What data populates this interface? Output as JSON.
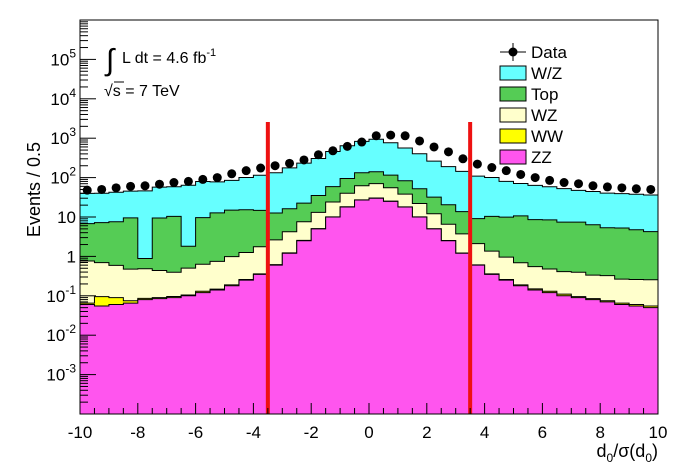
{
  "chart_data": {
    "type": "area",
    "xlabel": {
      "main": "d",
      "sub1": "0",
      "mid": "/σ(d",
      "sub2": "0",
      "end": ")"
    },
    "ylabel": "Events / 0.5",
    "xlim": [
      -10,
      10
    ],
    "ylim": [
      0.0001,
      1000000
    ],
    "yscale": "log",
    "stacked": true,
    "bin_width": 0.5,
    "x_ticks": [
      "-10",
      "-8",
      "-6",
      "-4",
      "-2",
      "0",
      "2",
      "4",
      "6",
      "8",
      "10"
    ],
    "y_ticks": [
      {
        "type": "sup",
        "base": "10",
        "exp": "5",
        "value": 100000
      },
      {
        "type": "sup",
        "base": "10",
        "exp": "4",
        "value": 10000
      },
      {
        "type": "sup",
        "base": "10",
        "exp": "3",
        "value": 1000
      },
      {
        "type": "sup",
        "base": "10",
        "exp": "2",
        "value": 100
      },
      {
        "type": "plain",
        "text": "10",
        "value": 10
      },
      {
        "type": "plain",
        "text": "1",
        "value": 1
      },
      {
        "type": "sup",
        "base": "10",
        "exp": "-1",
        "value": 0.1
      },
      {
        "type": "sup",
        "base": "10",
        "exp": "-2",
        "value": 0.01
      },
      {
        "type": "sup",
        "base": "10",
        "exp": "-3",
        "value": 0.001
      }
    ],
    "annotations": {
      "lumi_prefix": "L dt = 4.6 fb",
      "lumi_exp": "-1",
      "energy_sqrt": "√",
      "energy_rest": "s = 7 TeV"
    },
    "cut_lines": [
      -3.5,
      3.5
    ],
    "cut_color": "#ee1111",
    "legend": {
      "position": "top-right",
      "entries": [
        {
          "label": "Data",
          "kind": "marker"
        },
        {
          "label": "W/Z",
          "color": "#66ffff"
        },
        {
          "label": "Top",
          "color": "#55cc55"
        },
        {
          "label": "WZ",
          "color": "#ffffcc"
        },
        {
          "label": "WW",
          "color": "#ffff00"
        },
        {
          "label": "ZZ",
          "color": "#ff55ee"
        }
      ]
    },
    "stack_order": [
      "ZZ",
      "WW",
      "WZ",
      "Top",
      "W/Z"
    ],
    "bin_centers": [
      -9.75,
      -9.25,
      -8.75,
      -8.25,
      -7.75,
      -7.25,
      -6.75,
      -6.25,
      -5.75,
      -5.25,
      -4.75,
      -4.25,
      -3.75,
      -3.25,
      -2.75,
      -2.25,
      -1.75,
      -1.25,
      -0.75,
      -0.25,
      0.25,
      0.75,
      1.25,
      1.75,
      2.25,
      2.75,
      3.25,
      3.75,
      4.25,
      4.75,
      5.25,
      5.75,
      6.25,
      6.75,
      7.25,
      7.75,
      8.25,
      8.75,
      9.25,
      9.75
    ],
    "series": [
      {
        "name": "ZZ",
        "color": "#ff55ee",
        "values": [
          0.06,
          0.055,
          0.06,
          0.065,
          0.08,
          0.085,
          0.09,
          0.1,
          0.12,
          0.14,
          0.18,
          0.25,
          0.35,
          0.6,
          1.2,
          2.5,
          5,
          10,
          18,
          27,
          30,
          25,
          18,
          10,
          5,
          2.5,
          1.2,
          0.6,
          0.35,
          0.25,
          0.18,
          0.14,
          0.12,
          0.1,
          0.09,
          0.08,
          0.07,
          0.06,
          0.055,
          0.05
        ]
      },
      {
        "name": "WW",
        "color": "#ffff00",
        "values": [
          0.005,
          0.04,
          0.03,
          0.01,
          0.006,
          0.005,
          0.006,
          0.005,
          0.01,
          0.008,
          0.01,
          0.01,
          0.01,
          0.02,
          0.03,
          0.05,
          0.08,
          0.1,
          0.2,
          0.3,
          0.3,
          0.2,
          0.1,
          0.08,
          0.05,
          0.03,
          0.02,
          0.01,
          0.01,
          0.01,
          0.01,
          0.01,
          0.01,
          0.01,
          0.005,
          0.005,
          0.005,
          0.005,
          0.005,
          0.005
        ]
      },
      {
        "name": "WZ",
        "color": "#ffffcc",
        "values": [
          0.7,
          0.6,
          0.5,
          0.4,
          0.4,
          0.35,
          0.3,
          0.4,
          0.5,
          0.6,
          0.8,
          1,
          1.4,
          2,
          3,
          5,
          8,
          14,
          22,
          35,
          40,
          30,
          20,
          12,
          7,
          4,
          2.5,
          1.5,
          1,
          0.7,
          0.5,
          0.4,
          0.35,
          0.3,
          0.3,
          0.25,
          0.25,
          0.2,
          0.2,
          0.2
        ]
      },
      {
        "name": "Top",
        "color": "#55cc55",
        "values": [
          6,
          6.5,
          7,
          9,
          0.4,
          9,
          10,
          1.3,
          9,
          12,
          14,
          14,
          13,
          10,
          12,
          15,
          22,
          35,
          55,
          70,
          70,
          60,
          45,
          30,
          20,
          14,
          10,
          7,
          9,
          9,
          10,
          8,
          8,
          7,
          7,
          6,
          5,
          5,
          4.5,
          4
        ]
      },
      {
        "name": "W/Z",
        "color": "#66ffff",
        "values": [
          33,
          33,
          35,
          36,
          45,
          48,
          48,
          62,
          70,
          65,
          70,
          85,
          100,
          120,
          160,
          210,
          270,
          400,
          550,
          700,
          800,
          650,
          480,
          350,
          230,
          170,
          130,
          100,
          90,
          70,
          60,
          55,
          50,
          45,
          40,
          38,
          35,
          34,
          33,
          32
        ]
      }
    ],
    "data_points": {
      "name": "Data",
      "values": [
        48,
        50,
        55,
        60,
        62,
        68,
        75,
        80,
        90,
        100,
        125,
        150,
        175,
        200,
        230,
        280,
        380,
        480,
        620,
        800,
        1150,
        1200,
        1150,
        850,
        600,
        450,
        300,
        220,
        180,
        150,
        120,
        100,
        85,
        75,
        70,
        62,
        58,
        55,
        52,
        50
      ]
    }
  }
}
